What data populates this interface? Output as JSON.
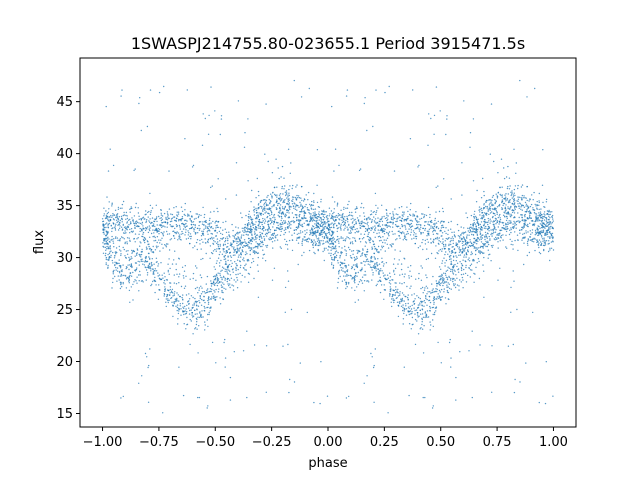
{
  "chart_data": {
    "type": "scatter",
    "title": "1SWASPJ214755.80-023655.1 Period 3915471.5s",
    "xlabel": "phase",
    "ylabel": "flux",
    "xlim": [
      -1.1,
      1.1
    ],
    "ylim": [
      13.7,
      49.2
    ],
    "x_ticks": [
      -1.0,
      -0.75,
      -0.5,
      -0.25,
      0.0,
      0.25,
      0.5,
      0.75,
      1.0
    ],
    "x_tick_labels": [
      "−1.00",
      "−0.75",
      "−0.50",
      "−0.25",
      "0.00",
      "0.25",
      "0.50",
      "0.75",
      "1.00"
    ],
    "y_ticks": [
      15,
      20,
      25,
      30,
      35,
      40,
      45
    ],
    "y_tick_labels": [
      "15",
      "20",
      "25",
      "30",
      "35",
      "40",
      "45"
    ],
    "grid": false,
    "marker_color": "#1f77b4",
    "phase_profile": {
      "description_values": "median flux vs phase (one period, repeated for phase -1..0 and 0..1)",
      "phase": [
        0.0,
        0.05,
        0.1,
        0.15,
        0.2,
        0.25,
        0.3,
        0.35,
        0.4,
        0.45,
        0.5,
        0.55,
        0.6,
        0.65,
        0.7,
        0.75,
        0.8,
        0.85,
        0.9,
        0.95,
        1.0
      ],
      "flux": [
        32.5,
        31.5,
        30.5,
        30.8,
        31.5,
        31.0,
        30.0,
        29.0,
        28.0,
        27.5,
        28.5,
        30.0,
        30.5,
        32.0,
        33.0,
        33.5,
        34.5,
        34.0,
        33.5,
        33.0,
        32.5
      ],
      "upper_branch_flux": [
        33.0,
        33.5,
        33.5,
        33.2,
        33.0,
        33.0,
        33.2,
        33.5,
        33.0,
        32.5,
        32.0,
        31.0,
        31.5,
        33.0,
        34.0,
        35.0,
        35.5,
        35.0,
        34.5,
        33.5,
        33.0
      ],
      "lower_branch_flux": [
        32.0,
        29.5,
        28.5,
        29.0,
        30.0,
        28.0,
        26.5,
        25.0,
        24.5,
        25.0,
        27.0,
        28.5,
        29.5,
        31.0,
        32.0,
        32.5,
        33.5,
        33.0,
        32.5,
        32.5,
        32.0
      ],
      "outlier_range": [
        15.0,
        47.5
      ]
    }
  }
}
